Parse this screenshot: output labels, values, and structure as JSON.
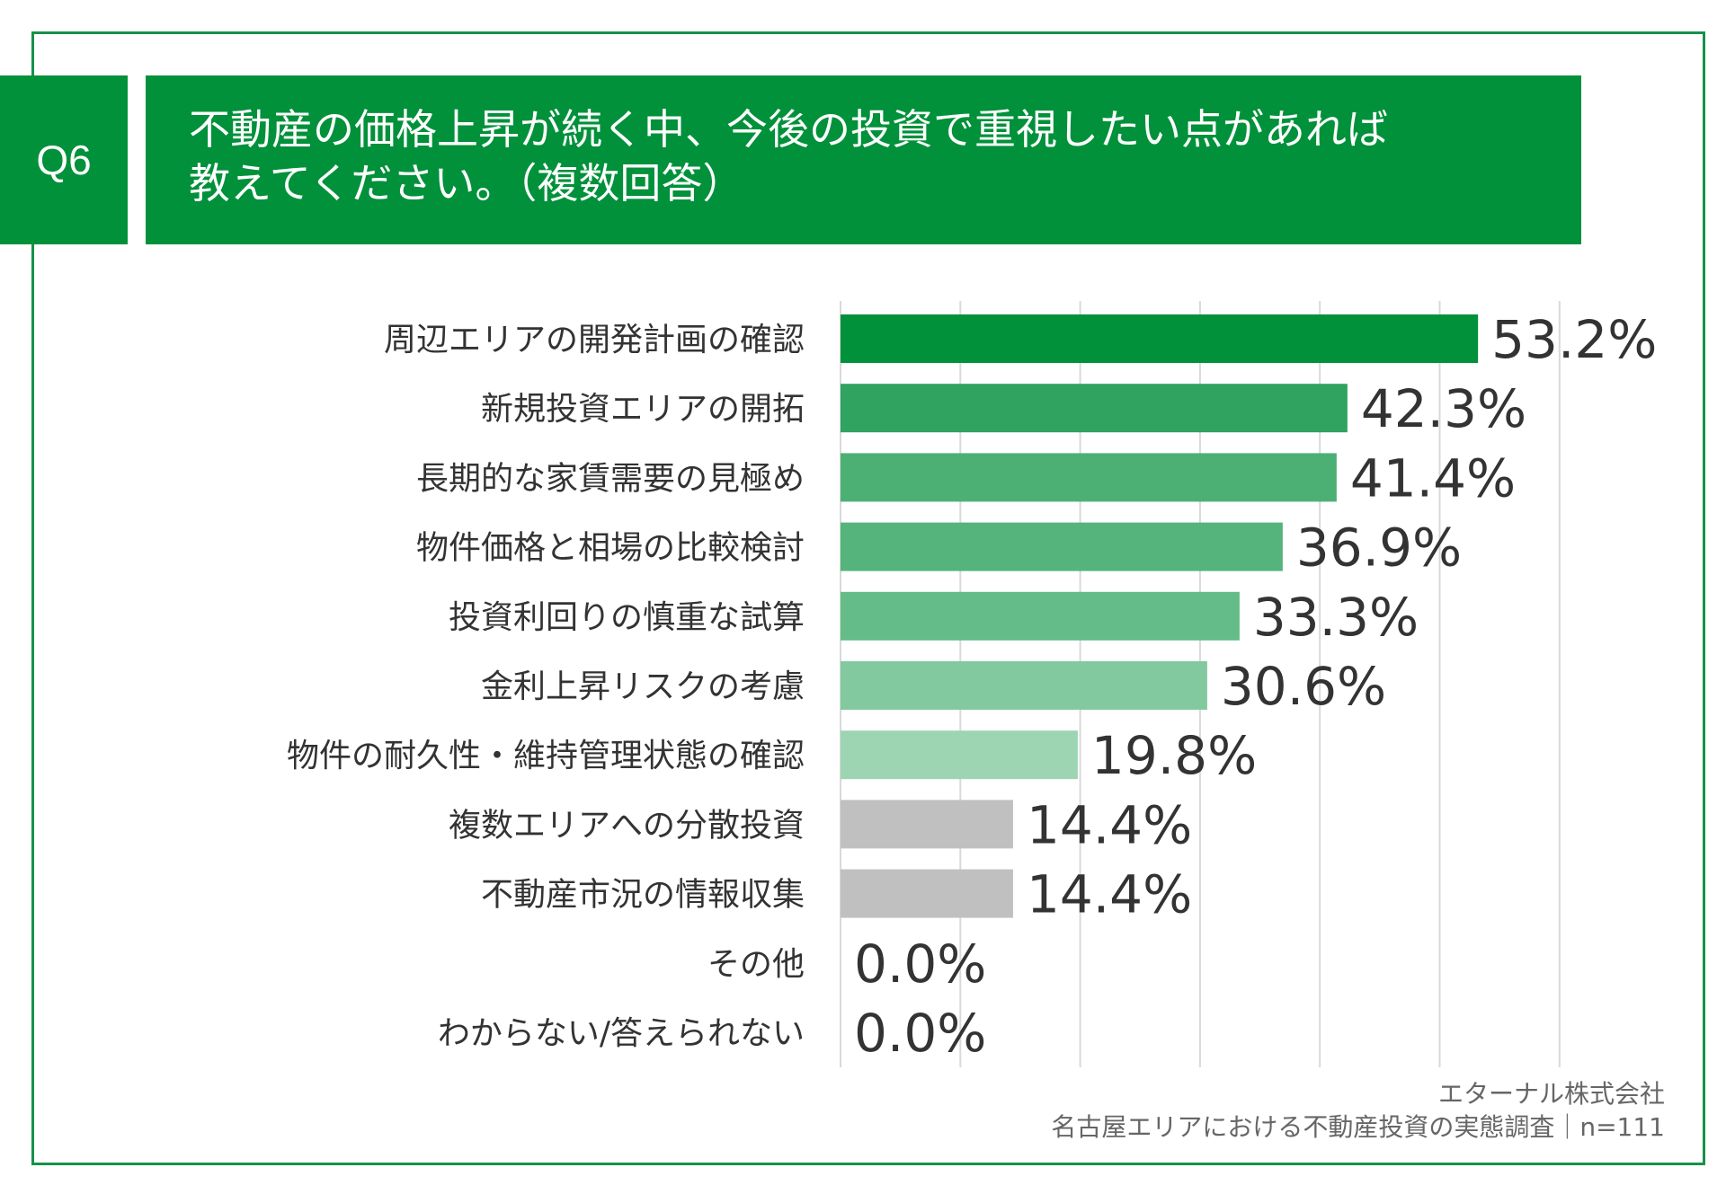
{
  "question": {
    "number": "Q6",
    "title_line1": "不動産の価格上昇が続く中、今後の投資で重視したい点があれば",
    "title_line2": "教えてください。（複数回答）"
  },
  "chart_data": {
    "type": "bar",
    "orientation": "horizontal",
    "categories": [
      "周辺エリアの開発計画の確認",
      "新規投資エリアの開拓",
      "長期的な家賃需要の見極め",
      "物件価格と相場の比較検討",
      "投資利回りの慎重な試算",
      "金利上昇リスクの考慮",
      "物件の耐久性・維持管理状態の確認",
      "複数エリアへの分散投資",
      "不動産市況の情報収集",
      "その他",
      "わからない/答えられない"
    ],
    "values": [
      53.2,
      42.3,
      41.4,
      36.9,
      33.3,
      30.6,
      19.8,
      14.4,
      14.4,
      0.0,
      0.0
    ],
    "value_labels": [
      "53.2%",
      "42.3%",
      "41.4%",
      "36.9%",
      "33.3%",
      "30.6%",
      "19.8%",
      "14.4%",
      "14.4%",
      "0.0%",
      "0.0%"
    ],
    "colors": [
      "#00913a",
      "#2fa35f",
      "#4cb075",
      "#55b47c",
      "#64bc88",
      "#83c9a0",
      "#9dd5b3",
      "#c0c0c0",
      "#c0c0c0",
      "#c0c0c0",
      "#c0c0c0"
    ],
    "xlim": [
      0,
      60
    ],
    "grid": true,
    "legend": "none"
  },
  "footer": {
    "company": "エターナル株式会社",
    "survey": "名古屋エリアにおける不動産投資の実態調査｜n=111"
  }
}
